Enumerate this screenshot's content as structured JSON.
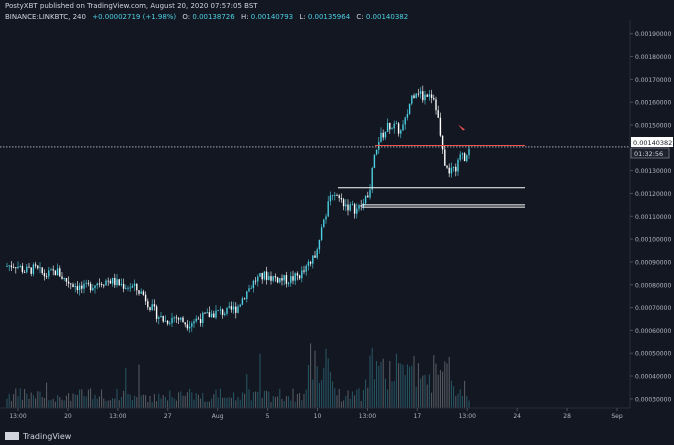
{
  "header": {
    "published": "PostyXBT published on TradingView.com, August 20, 2020 07:57:05 BST",
    "symbol": "BINANCE:LINKBTC, 240",
    "change": "+0.00002719 (+1.98%)",
    "ohlc": {
      "o_label": "O:",
      "o": "0.00138726",
      "h_label": "H:",
      "h": "0.00140793",
      "l_label": "L:",
      "l": "0.00135964",
      "c_label": "C:",
      "c": "0.00140382"
    }
  },
  "footer": {
    "brand": "TradingView"
  },
  "colors": {
    "background": "#131722",
    "up": "#4dd0e1",
    "down": "#ffffff",
    "axis_text": "#b2b5be",
    "price_line": "#ffffff",
    "resistance_line": "#ef5350",
    "support_line": "#ffffff",
    "marker": "#ef5350"
  },
  "chart_data": {
    "type": "candlestick",
    "symbol": "BINANCE:LINKBTC",
    "interval": "240",
    "y_axis": {
      "ticks": [
        "0.00190000",
        "0.00180000",
        "0.00170000",
        "0.00160000",
        "0.00150000",
        "0.00130000",
        "0.00120000",
        "0.00110000",
        "0.00100000",
        "0.00090000",
        "0.00080000",
        "0.00070000",
        "0.00060000",
        "0.00050000",
        "0.00040000",
        "0.00030000"
      ],
      "range": [
        0.00026,
        0.00196
      ]
    },
    "x_axis": {
      "ticks": [
        "13:00",
        "20",
        "13:00",
        "27",
        "Aug",
        "5",
        "10",
        "13:00",
        "17",
        "13:00",
        "24",
        "28",
        "Sep"
      ]
    },
    "last_price_label": "0.00140382",
    "countdown_label": "01:32:56",
    "last_price": 0.00140382,
    "close_path": [
      {
        "t": 0,
        "p": 0.00088
      },
      {
        "t": 10,
        "p": 0.00089
      },
      {
        "t": 20,
        "p": 0.00086
      },
      {
        "t": 30,
        "p": 0.00087
      },
      {
        "t": 40,
        "p": 0.00084
      },
      {
        "t": 52,
        "p": 0.00086
      },
      {
        "t": 60,
        "p": 0.00082
      },
      {
        "t": 70,
        "p": 0.0008
      },
      {
        "t": 78,
        "p": 0.00078
      },
      {
        "t": 92,
        "p": 0.00081
      },
      {
        "t": 104,
        "p": 0.00082
      },
      {
        "t": 116,
        "p": 0.0008
      },
      {
        "t": 128,
        "p": 0.00079
      },
      {
        "t": 138,
        "p": 0.00076
      },
      {
        "t": 146,
        "p": 0.0007
      },
      {
        "t": 152,
        "p": 0.00067
      },
      {
        "t": 160,
        "p": 0.00064
      },
      {
        "t": 170,
        "p": 0.00066
      },
      {
        "t": 182,
        "p": 0.00063
      },
      {
        "t": 192,
        "p": 0.00065
      },
      {
        "t": 200,
        "p": 0.00066
      },
      {
        "t": 212,
        "p": 0.00068
      },
      {
        "t": 222,
        "p": 0.00068
      },
      {
        "t": 232,
        "p": 0.0007
      },
      {
        "t": 240,
        "p": 0.00076
      },
      {
        "t": 250,
        "p": 0.00082
      },
      {
        "t": 260,
        "p": 0.00084
      },
      {
        "t": 270,
        "p": 0.00083
      },
      {
        "t": 280,
        "p": 0.00082
      },
      {
        "t": 290,
        "p": 0.00083
      },
      {
        "t": 300,
        "p": 0.00086
      },
      {
        "t": 308,
        "p": 0.00091
      },
      {
        "t": 314,
        "p": 0.001
      },
      {
        "t": 320,
        "p": 0.0011
      },
      {
        "t": 328,
        "p": 0.00121
      },
      {
        "t": 336,
        "p": 0.00117
      },
      {
        "t": 344,
        "p": 0.00114
      },
      {
        "t": 352,
        "p": 0.00113
      },
      {
        "t": 358,
        "p": 0.00115
      },
      {
        "t": 364,
        "p": 0.0012
      },
      {
        "t": 368,
        "p": 0.00132
      },
      {
        "t": 372,
        "p": 0.00142
      },
      {
        "t": 378,
        "p": 0.00146
      },
      {
        "t": 384,
        "p": 0.0015
      },
      {
        "t": 390,
        "p": 0.00149
      },
      {
        "t": 396,
        "p": 0.00147
      },
      {
        "t": 400,
        "p": 0.00151
      },
      {
        "t": 406,
        "p": 0.00162
      },
      {
        "t": 412,
        "p": 0.00166
      },
      {
        "t": 418,
        "p": 0.00162
      },
      {
        "t": 424,
        "p": 0.00165
      },
      {
        "t": 430,
        "p": 0.00161
      },
      {
        "t": 434,
        "p": 0.0015
      },
      {
        "t": 438,
        "p": 0.00136
      },
      {
        "t": 444,
        "p": 0.00128
      },
      {
        "t": 448,
        "p": 0.00133
      },
      {
        "t": 452,
        "p": 0.00131
      },
      {
        "t": 456,
        "p": 0.0014
      },
      {
        "t": 460,
        "p": 0.00136
      },
      {
        "t": 466,
        "p": 0.001404
      }
    ],
    "levels": [
      {
        "kind": "resistance",
        "price": 0.00141,
        "from": 370,
        "to": 520
      },
      {
        "kind": "support",
        "price": 0.001225,
        "from": 333,
        "to": 520
      },
      {
        "kind": "support",
        "price": 0.00115,
        "from": 357,
        "to": 520
      },
      {
        "kind": "support",
        "price": 0.00114,
        "from": 357,
        "to": 520
      }
    ],
    "volume_range": [
      0,
      1
    ]
  }
}
